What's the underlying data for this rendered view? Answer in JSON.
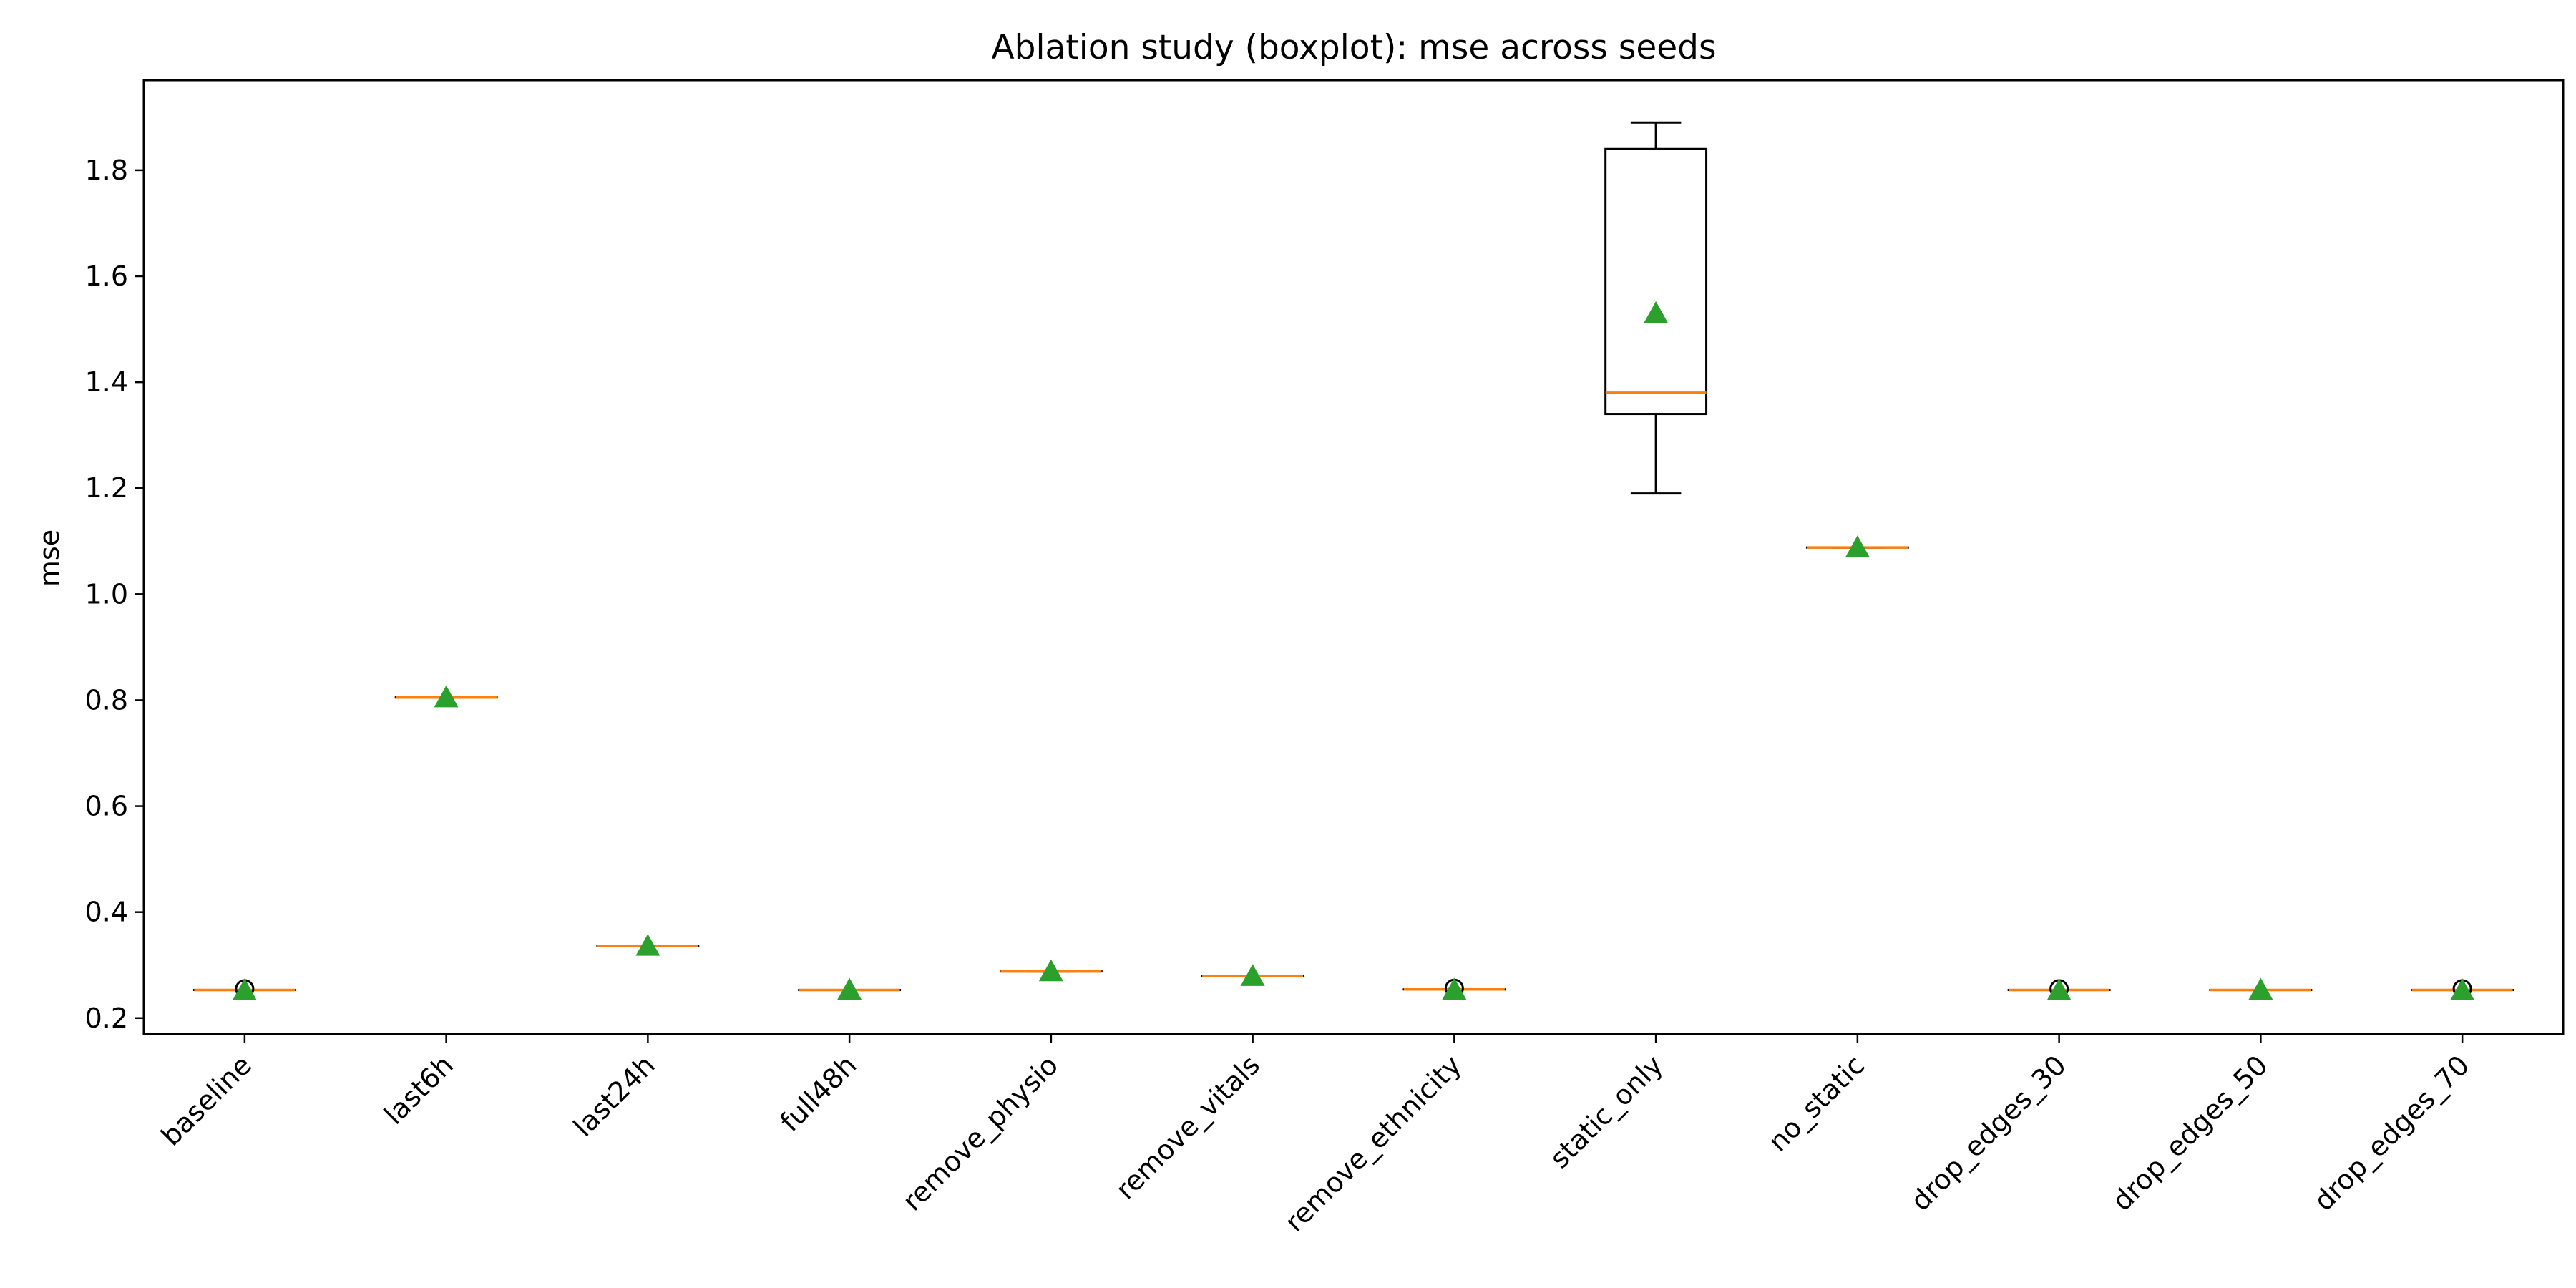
{
  "chart_data": {
    "type": "boxplot",
    "title": "Ablation study (boxplot): mse across seeds",
    "xlabel": "",
    "ylabel": "mse",
    "ylim": [
      0.17,
      1.97
    ],
    "yticks": [
      0.2,
      0.4,
      0.6,
      0.8,
      1.0,
      1.2,
      1.4,
      1.6,
      1.8
    ],
    "ytick_labels": [
      "0.2",
      "0.4",
      "0.6",
      "0.8",
      "1.0",
      "1.2",
      "1.4",
      "1.6",
      "1.8"
    ],
    "grid": false,
    "legend": "none",
    "colors": {
      "box": "#000000",
      "median": "#ff7f0e",
      "mean_marker": "#2ca02c",
      "outlier": "#000000"
    },
    "categories": [
      "baseline",
      "last6h",
      "last24h",
      "full48h",
      "remove_physio",
      "remove_vitals",
      "remove_ethnicity",
      "static_only",
      "no_static",
      "drop_edges_30",
      "drop_edges_50",
      "drop_edges_70"
    ],
    "boxes": [
      {
        "whisker_low": 0.253,
        "q1": 0.253,
        "median": 0.253,
        "q3": 0.253,
        "whisker_high": 0.253,
        "mean": 0.252,
        "outliers": [
          0.255
        ]
      },
      {
        "whisker_low": 0.805,
        "q1": 0.805,
        "median": 0.805,
        "q3": 0.806,
        "whisker_high": 0.806,
        "mean": 0.805,
        "outliers": []
      },
      {
        "whisker_low": 0.336,
        "q1": 0.336,
        "median": 0.336,
        "q3": 0.336,
        "whisker_high": 0.336,
        "mean": 0.336,
        "outliers": []
      },
      {
        "whisker_low": 0.253,
        "q1": 0.253,
        "median": 0.253,
        "q3": 0.253,
        "whisker_high": 0.253,
        "mean": 0.253,
        "outliers": []
      },
      {
        "whisker_low": 0.288,
        "q1": 0.288,
        "median": 0.288,
        "q3": 0.288,
        "whisker_high": 0.288,
        "mean": 0.288,
        "outliers": []
      },
      {
        "whisker_low": 0.279,
        "q1": 0.279,
        "median": 0.279,
        "q3": 0.279,
        "whisker_high": 0.279,
        "mean": 0.279,
        "outliers": []
      },
      {
        "whisker_low": 0.254,
        "q1": 0.254,
        "median": 0.254,
        "q3": 0.254,
        "whisker_high": 0.254,
        "mean": 0.253,
        "outliers": [
          0.256
        ]
      },
      {
        "whisker_low": 1.19,
        "q1": 1.34,
        "median": 1.38,
        "q3": 1.84,
        "whisker_high": 1.89,
        "mean": 1.53,
        "outliers": []
      },
      {
        "whisker_low": 1.088,
        "q1": 1.088,
        "median": 1.088,
        "q3": 1.088,
        "whisker_high": 1.088,
        "mean": 1.088,
        "outliers": []
      },
      {
        "whisker_low": 0.253,
        "q1": 0.253,
        "median": 0.253,
        "q3": 0.253,
        "whisker_high": 0.253,
        "mean": 0.252,
        "outliers": [
          0.255
        ]
      },
      {
        "whisker_low": 0.253,
        "q1": 0.253,
        "median": 0.253,
        "q3": 0.253,
        "whisker_high": 0.253,
        "mean": 0.253,
        "outliers": []
      },
      {
        "whisker_low": 0.253,
        "q1": 0.253,
        "median": 0.253,
        "q3": 0.253,
        "whisker_high": 0.253,
        "mean": 0.252,
        "outliers": [
          0.255
        ]
      }
    ]
  }
}
